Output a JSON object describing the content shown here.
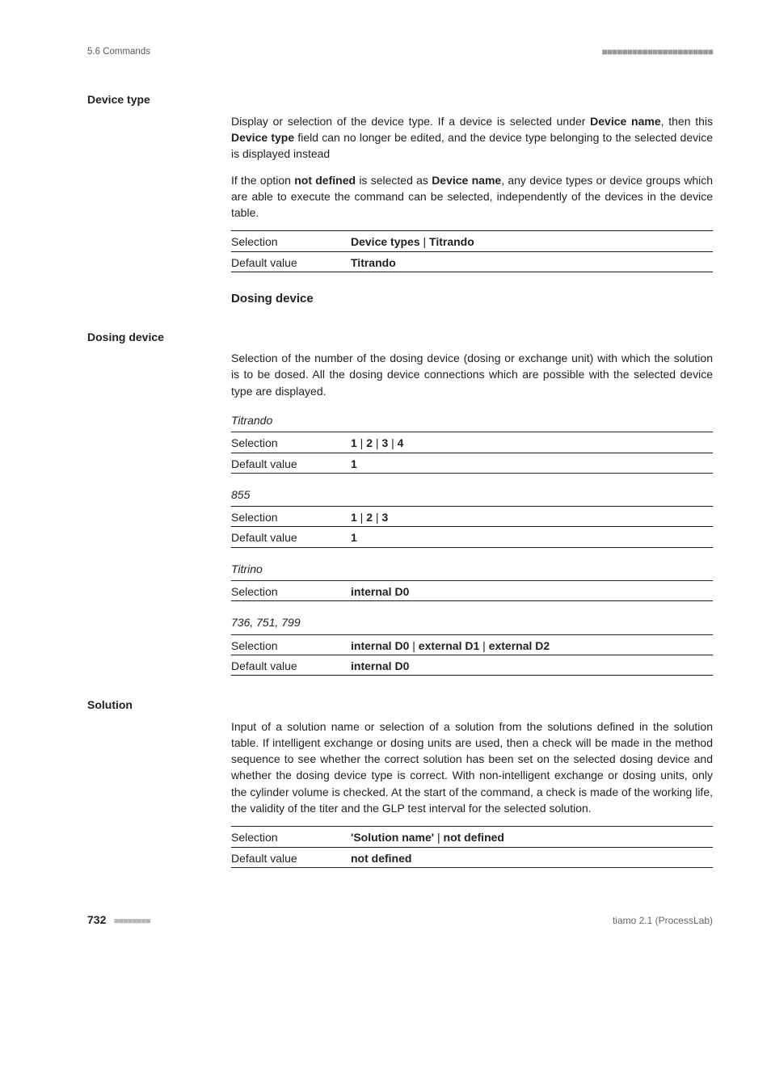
{
  "header": {
    "left": "5.6 Commands",
    "right_squares": "■■■■■■■■■■■■■■■■■■■■■■"
  },
  "sections": {
    "devicetype": {
      "label": "Device type",
      "p1_parts": [
        "Display or selection of the device type. If a device is selected under ",
        "Device name",
        ", then this ",
        "Device type",
        " field can no longer be edited, and the device type belonging to the selected device is displayed instead"
      ],
      "p2_parts": [
        "If the option ",
        "not defined",
        " is selected as ",
        "Device name",
        ", any device types or device groups which are able to execute the command can be selected, independently of the devices in the device table."
      ],
      "rows": [
        {
          "k": "Selection",
          "v_parts": [
            "Device types",
            " | ",
            "Titrando"
          ],
          "bold": [
            true,
            false,
            true
          ]
        },
        {
          "k": "Default value",
          "v_parts": [
            "Titrando"
          ],
          "bold": [
            true
          ]
        }
      ]
    },
    "dosingdev_head": "Dosing device",
    "dosingdevice": {
      "label": "Dosing device",
      "p1": "Selection of the number of the dosing device (dosing or exchange unit) with which the solution is to be dosed. All the dosing device connections which are possible with the selected device type are displayed.",
      "groups": [
        {
          "title": "Titrando",
          "rows": [
            {
              "k": "Selection",
              "v_parts": [
                "1",
                " | ",
                "2",
                " | ",
                "3",
                " | ",
                "4"
              ],
              "bold": [
                true,
                false,
                true,
                false,
                true,
                false,
                true
              ]
            },
            {
              "k": "Default value",
              "v_parts": [
                "1"
              ],
              "bold": [
                true
              ]
            }
          ]
        },
        {
          "title": "855",
          "rows": [
            {
              "k": "Selection",
              "v_parts": [
                "1",
                " | ",
                "2",
                " | ",
                "3"
              ],
              "bold": [
                true,
                false,
                true,
                false,
                true
              ]
            },
            {
              "k": "Default value",
              "v_parts": [
                "1"
              ],
              "bold": [
                true
              ]
            }
          ]
        },
        {
          "title": "Titrino",
          "rows": [
            {
              "k": "Selection",
              "v_parts": [
                "internal D0"
              ],
              "bold": [
                true
              ]
            }
          ]
        },
        {
          "title": "736, 751, 799",
          "rows": [
            {
              "k": "Selection",
              "v_parts": [
                "internal D0",
                " | ",
                "external D1",
                " | ",
                "external D2"
              ],
              "bold": [
                true,
                false,
                true,
                false,
                true
              ]
            },
            {
              "k": "Default value",
              "v_parts": [
                "internal D0"
              ],
              "bold": [
                true
              ]
            }
          ]
        }
      ]
    },
    "solution": {
      "label": "Solution",
      "p1": "Input of a solution name or selection of a solution from the solutions defined in the solution table. If intelligent exchange or dosing units are used, then a check will be made in the method sequence to see whether the correct solution has been set on the selected dosing device and whether the dosing device type is correct. With non-intelligent exchange or dosing units, only the cylinder volume is checked. At the start of the command, a check is made of the working life, the validity of the titer and the GLP test interval for the selected solution.",
      "rows": [
        {
          "k": "Selection",
          "v_parts": [
            "'Solution name'",
            " | ",
            "not defined"
          ],
          "bold": [
            true,
            false,
            true
          ]
        },
        {
          "k": "Default value",
          "v_parts": [
            "not defined"
          ],
          "bold": [
            true
          ]
        }
      ]
    }
  },
  "footer": {
    "page": "732",
    "squares": "■■■■■■■■",
    "product": "tiamo 2.1 (ProcessLab)"
  }
}
